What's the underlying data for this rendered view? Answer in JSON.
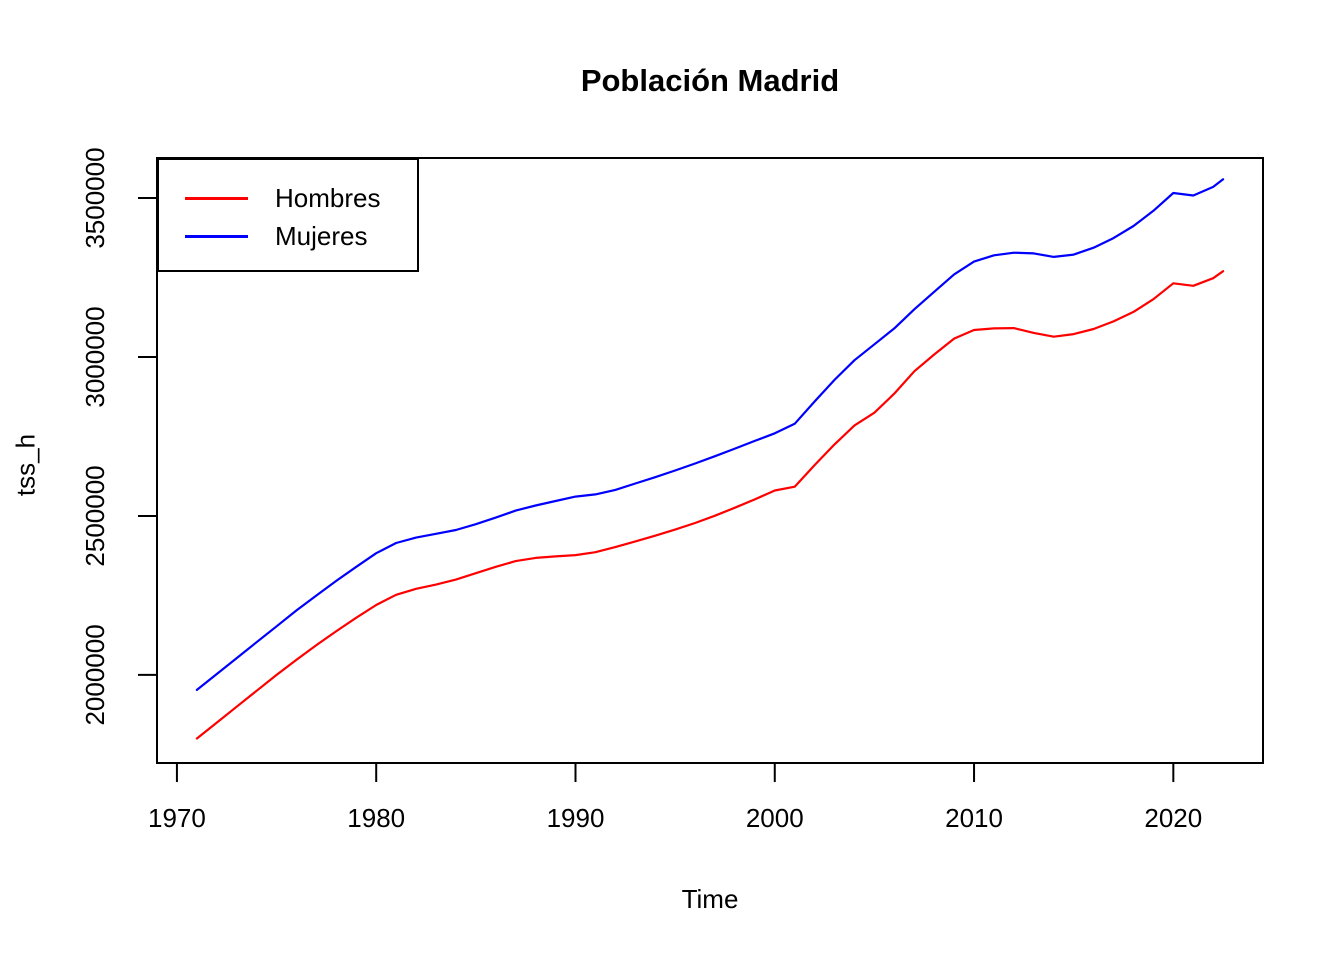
{
  "chart_data": {
    "type": "line",
    "title": "Población Madrid",
    "xlabel": "Time",
    "ylabel": "tss_h",
    "grid": false,
    "legend_position": "topleft",
    "xlim": [
      1969.0,
      2024.5
    ],
    "ylim": [
      1723000,
      3626000
    ],
    "x_ticks": [
      1970,
      1980,
      1990,
      2000,
      2010,
      2020
    ],
    "x_tick_labels": [
      "1970",
      "1980",
      "1990",
      "2000",
      "2010",
      "2020"
    ],
    "y_ticks": [
      2000000,
      2500000,
      3000000,
      3500000
    ],
    "y_tick_labels": [
      "2000000",
      "2500000",
      "3000000",
      "3500000"
    ],
    "axis_color": "#000000",
    "x": [
      1971,
      1972,
      1973,
      1974,
      1975,
      1976,
      1977,
      1978,
      1979,
      1980,
      1981,
      1982,
      1983,
      1984,
      1985,
      1986,
      1987,
      1988,
      1989,
      1990,
      1991,
      1992,
      1993,
      1994,
      1995,
      1996,
      1997,
      1998,
      1999,
      2000,
      2001,
      2002,
      2003,
      2004,
      2005,
      2006,
      2007,
      2008,
      2009,
      2010,
      2011,
      2012,
      2013,
      2014,
      2015,
      2016,
      2017,
      2018,
      2019,
      2020,
      2021,
      2022,
      2022.5
    ],
    "series": [
      {
        "name": "Hombres",
        "color": "#FF0000",
        "values": [
          1800000,
          1850000,
          1900000,
          1950000,
          2000000,
          2048000,
          2094000,
          2138000,
          2180000,
          2220000,
          2252000,
          2271000,
          2284000,
          2300000,
          2320000,
          2340000,
          2358000,
          2368000,
          2373000,
          2377000,
          2386000,
          2402000,
          2420000,
          2438000,
          2457000,
          2478000,
          2501000,
          2526000,
          2552000,
          2580000,
          2592000,
          2660000,
          2725000,
          2785000,
          2825000,
          2885000,
          2955000,
          3008000,
          3058000,
          3085000,
          3090000,
          3091000,
          3076000,
          3064000,
          3072000,
          3088000,
          3112000,
          3142000,
          3182000,
          3232000,
          3224000,
          3248000,
          3270000
        ]
      },
      {
        "name": "Mujeres",
        "color": "#0000FF",
        "values": [
          1953000,
          2003000,
          2053000,
          2103000,
          2153000,
          2203000,
          2250000,
          2296000,
          2340000,
          2383000,
          2415000,
          2432000,
          2444000,
          2456000,
          2474000,
          2495000,
          2517000,
          2533000,
          2547000,
          2561000,
          2568000,
          2582000,
          2602000,
          2622000,
          2643000,
          2665000,
          2688000,
          2712000,
          2736000,
          2760000,
          2790000,
          2860000,
          2928000,
          2990000,
          3040000,
          3090000,
          3150000,
          3205000,
          3260000,
          3300000,
          3320000,
          3328000,
          3326000,
          3315000,
          3322000,
          3344000,
          3374000,
          3412000,
          3460000,
          3516000,
          3508000,
          3535000,
          3559000
        ]
      }
    ]
  }
}
